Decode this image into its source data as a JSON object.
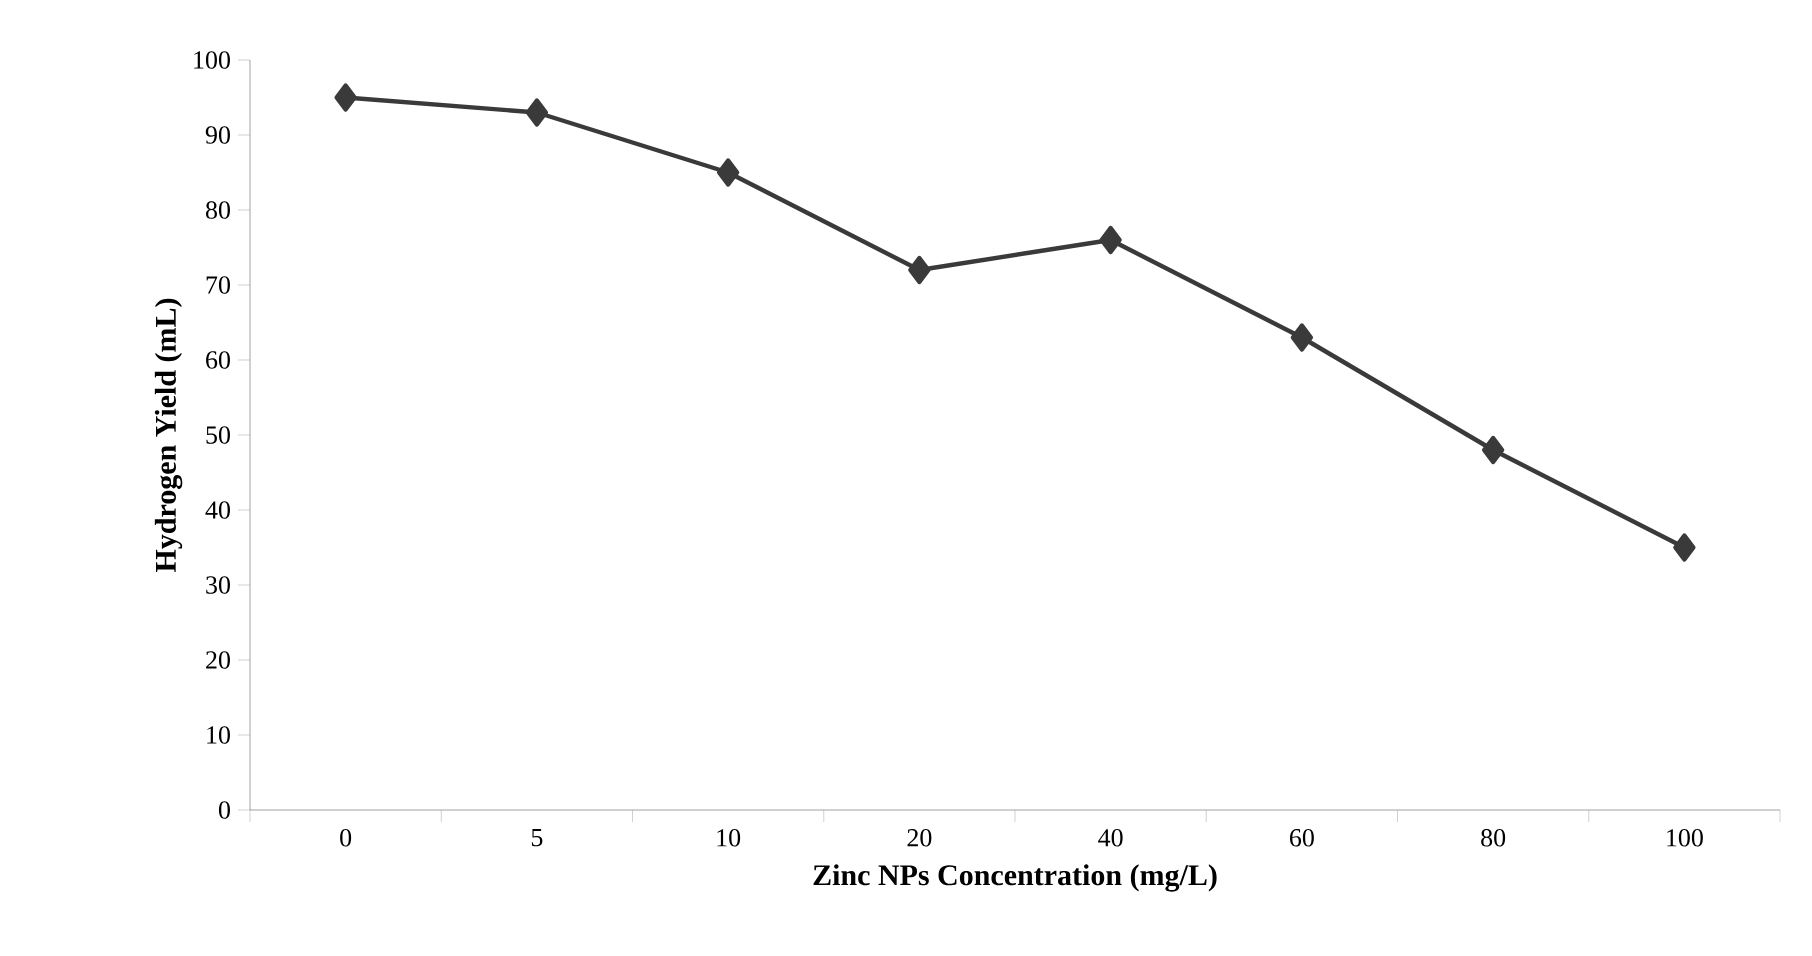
{
  "chart_data": {
    "type": "line",
    "xlabel": "Zinc NPs Concentration (mg/L)",
    "ylabel": "Hydrogen Yield (mL)",
    "categories": [
      "0",
      "5",
      "10",
      "20",
      "40",
      "60",
      "80",
      "100"
    ],
    "series": [
      {
        "color": "#3a3a3a",
        "values": [
          95,
          93,
          85,
          72,
          76,
          63,
          48,
          35
        ]
      }
    ],
    "ylim": [
      0,
      100
    ],
    "yticks": [
      0,
      10,
      20,
      30,
      40,
      50,
      60,
      70,
      80,
      90,
      100
    ],
    "marker": "diamond",
    "line_style": "solid",
    "grid": false
  }
}
